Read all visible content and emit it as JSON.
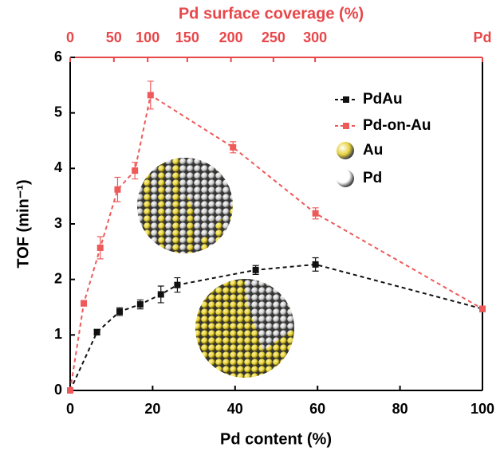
{
  "chart_data": {
    "type": "line",
    "x_label": "Pd content (%)",
    "y_label": "TOF (min⁻¹)",
    "x2_label": "Pd surface coverage (%)",
    "xlim": [
      0,
      100
    ],
    "xticks": [
      0,
      20,
      40,
      60,
      80,
      100
    ],
    "ylim": [
      0,
      6
    ],
    "yticks": [
      0,
      1,
      2,
      3,
      4,
      5,
      6
    ],
    "x2lim": [
      0,
      100
    ],
    "x2ticks": [
      0,
      {
        "value": 10.6,
        "label": "50"
      },
      {
        "value": 18.8,
        "label": "100"
      },
      {
        "value": 28.4,
        "label": "150"
      },
      {
        "value": 39,
        "label": "200"
      },
      {
        "value": 49.3,
        "label": "250"
      },
      {
        "value": 59.4,
        "label": "300"
      },
      {
        "value": 100,
        "label": "Pd"
      }
    ],
    "x2_color": "#e8474a",
    "series": [
      {
        "name": "PdAu",
        "color": "#111111",
        "x": [
          0,
          6.5,
          12,
          17,
          22,
          26,
          45,
          59.5,
          100
        ],
        "values": [
          0,
          1.05,
          1.42,
          1.55,
          1.73,
          1.9,
          2.17,
          2.27,
          1.47
        ],
        "errors": [
          0.03,
          0.05,
          0.07,
          0.08,
          0.15,
          0.13,
          0.08,
          0.12,
          0.05
        ]
      },
      {
        "name": "Pd-on-Au",
        "color": "#ee5a5a",
        "x": [
          0,
          3.3,
          7.3,
          11.5,
          15.7,
          19.5,
          39.5,
          59.5,
          100
        ],
        "values": [
          0,
          1.57,
          2.57,
          3.62,
          3.96,
          5.32,
          4.38,
          3.19,
          1.47
        ],
        "errors": [
          0.03,
          0.05,
          0.2,
          0.22,
          0.15,
          0.25,
          0.1,
          0.1,
          0.05
        ]
      }
    ],
    "sphere_legend": [
      {
        "name": "Au",
        "color": "#e6d23c"
      },
      {
        "name": "Pd",
        "color": "#ffffff"
      }
    ]
  }
}
